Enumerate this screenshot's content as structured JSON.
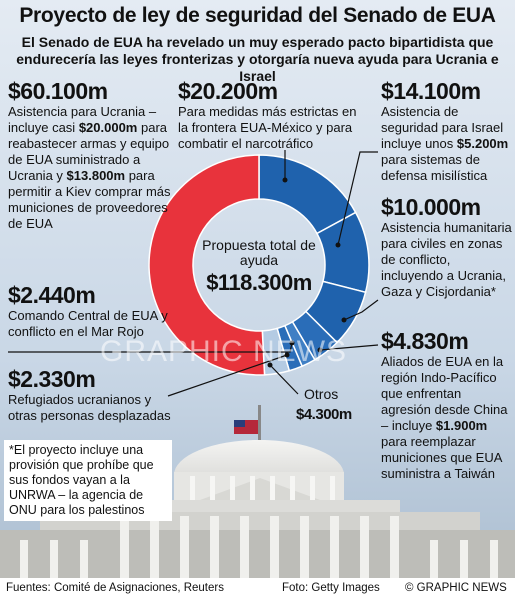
{
  "chart_data": {
    "type": "pie",
    "title": "Proyecto de ley de seguridad del Senado de EUA",
    "subtitle": "El Senado de EUA ha revelado un muy esperado pacto bipartidista que endurecería las leyes fronterizas y otorgaría nueva ayuda para Ucrania e Israel",
    "categories": [
      null,
      null,
      null,
      null,
      null,
      null,
      "Otros",
      null
    ],
    "values": [
      20200,
      14100,
      10000,
      4830,
      2440,
      2330,
      4300,
      60100
    ],
    "value_labels": [
      "$20.200m",
      "$14.100m",
      "$10.000m",
      "$4.830m",
      "$2.440m",
      "$2.330m",
      "$4.300m",
      "$60.100m"
    ],
    "colors": [
      "#1f62ad",
      "#1f62ad",
      "#1f62ad",
      "#2a6db8",
      "#3f7fc4",
      "#2a6db8",
      "#b4cbe3",
      "#e8333c"
    ],
    "descriptions": [
      [
        "Para medidas más estrictas en la frontera EUA-México y para combatir el narcotráfico"
      ],
      [
        "Asistencia de seguridad para Israel incluye unos ",
        "$5.200m",
        " para sistemas de defensa misilística"
      ],
      [
        "Asistencia humanitaria para civiles en zonas de conflicto, incluyendo a Ucrania, Gaza y Cisjordania*"
      ],
      [
        "Aliados de EUA en la región Indo-Pacífico que enfrentan agresión desde China – incluye ",
        "$1.900m",
        " para reemplazar municiones que EUA suministra a Taiwán"
      ],
      [
        "Comando Central de EUA y conflicto en el Mar Rojo"
      ],
      [
        "Refugiados ucranianos y otras personas desplazadas"
      ],
      null,
      [
        "Asistencia para Ucrania – incluye casi ",
        "$20.000m",
        " para reabastecer armas y equipo de EUA suministrado a Ucrania y ",
        "$13.800m",
        " para permitir a Kiev comprar más municiones de proveedores de EUA"
      ]
    ],
    "center_label": "Propuesta total de ayuda",
    "total": 118300,
    "total_label": "$118.300m",
    "note": "*El proyecto incluye una provisión que prohíbe que sus fondos vayan a la UNRWA – la agencia de ONU para los palestinos",
    "source": "Fuentes: Comité de Asignaciones, Reuters",
    "photo_credit": "Foto: Getty Images",
    "brand": "© GRAPHIC NEWS",
    "watermark": "GRAPHIC NEWS"
  }
}
